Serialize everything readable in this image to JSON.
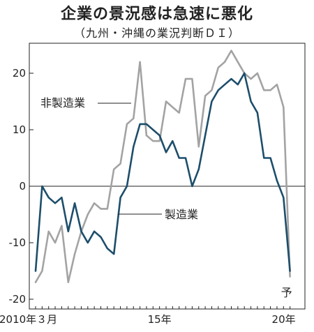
{
  "header": {
    "title": "企業の景況感は急速に悪化",
    "subtitle": "（九州・沖縄の業況判断ＤＩ）"
  },
  "chart_data": {
    "type": "line",
    "title": "企業の景況感は急速に悪化",
    "subtitle": "（九州・沖縄の業況判断ＤＩ）",
    "x_start": "2010年3月",
    "x_tick_labels": [
      "2010年３月",
      "15年",
      "20年"
    ],
    "x_tick_quarter_index": [
      0,
      19,
      39
    ],
    "ylim": [
      -21,
      28
    ],
    "yticks": [
      -20,
      -10,
      0,
      10,
      20
    ],
    "forecast_label": "予",
    "grid": false,
    "series": [
      {
        "name": "非製造業",
        "color": "#a3a3a3",
        "values": [
          -17,
          -15,
          -8,
          -10,
          -7,
          -17,
          -12,
          -8,
          -5,
          -3,
          -4,
          -4,
          3,
          4,
          11,
          12,
          22,
          9,
          8,
          8,
          15,
          14,
          13,
          19,
          19,
          7,
          16,
          17,
          21,
          22,
          24,
          22,
          20,
          19,
          20,
          17,
          17,
          18,
          14,
          -16
        ]
      },
      {
        "name": "製造業",
        "color": "#1d4e6b",
        "values": [
          -15,
          0,
          -2,
          -3,
          -2,
          -8,
          -3,
          -8,
          -10,
          -8,
          -9,
          -11,
          -12,
          -2,
          0,
          7,
          11,
          11,
          10,
          9,
          6,
          8,
          5,
          5,
          0,
          3,
          9,
          15,
          17,
          18,
          19,
          18,
          20,
          15,
          13,
          5,
          5,
          1,
          -2,
          -15
        ]
      }
    ]
  }
}
